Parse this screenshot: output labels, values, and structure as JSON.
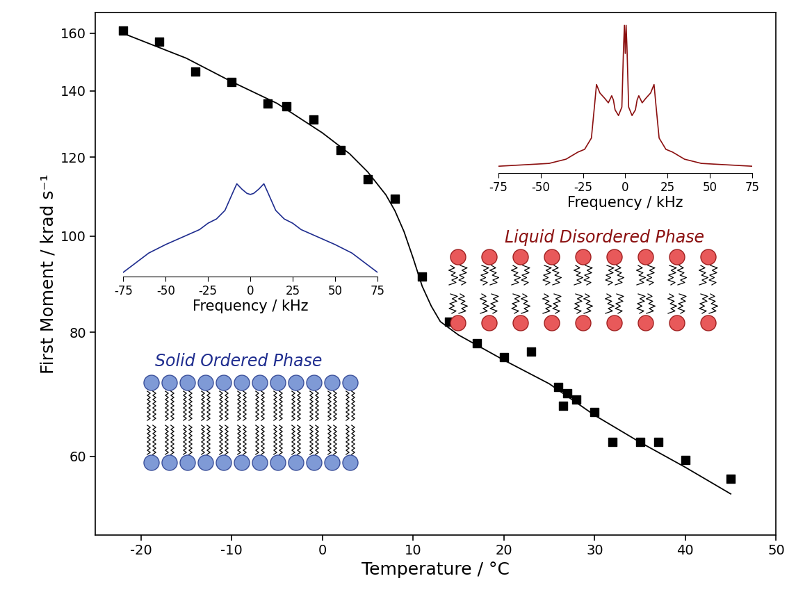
{
  "chart_data": [
    {
      "type": "scatter",
      "x_label": "Temperature / °C",
      "y_label": "First Moment / krad s⁻¹",
      "log": "y",
      "xlim": [
        -25,
        50
      ],
      "ylim": [
        50,
        168
      ],
      "xticks": [
        -20,
        -10,
        0,
        10,
        20,
        30,
        40,
        50
      ],
      "yticks": [
        60,
        80,
        100,
        120,
        140,
        160
      ],
      "series": [
        {
          "type": "scatter",
          "marker": "square",
          "color": "#000000",
          "x": [
            -22,
            -18,
            -14,
            -10,
            -6,
            -4,
            -1,
            2,
            5,
            8,
            11,
            14,
            17,
            20,
            23,
            26,
            26.5,
            27,
            28,
            30,
            32,
            35,
            37,
            40,
            45
          ],
          "values": [
            161,
            157,
            146.5,
            143,
            136,
            135,
            131,
            122,
            114,
            109,
            91,
            82,
            78,
            75.5,
            76.5,
            70.5,
            67.5,
            69.5,
            68.5,
            66.5,
            62,
            62,
            62,
            59.5,
            57
          ]
        },
        {
          "type": "line",
          "line_style": "solid",
          "color": "#000000",
          "x": [
            -22,
            -15,
            -10,
            -5,
            0,
            3,
            5,
            7,
            8,
            9,
            10,
            11,
            12,
            13,
            15,
            20,
            25,
            30,
            35,
            40,
            45
          ],
          "values": [
            160,
            151,
            143,
            136,
            127,
            121,
            116,
            110,
            106,
            101,
            95,
            89,
            85,
            82,
            79.5,
            75,
            71,
            66,
            62,
            58.5,
            55
          ]
        }
      ],
      "annotations": [
        {
          "text": "Solid Ordered Phase",
          "color": "#1f2d8f"
        },
        {
          "text": "Liquid Disordered Phase",
          "color": "#8b1010"
        }
      ]
    },
    {
      "type": "line",
      "x_label": "Frequency / kHz",
      "xlim": [
        -75,
        75
      ],
      "xticks": [
        -75,
        -50,
        -25,
        0,
        25,
        50,
        75
      ],
      "tick_labels": "x",
      "color": "#1f2d8f",
      "x": [
        -75,
        -70,
        -60,
        -50,
        -40,
        -30,
        -25,
        -20,
        -15,
        -10,
        -8,
        -5,
        -2,
        0,
        2,
        5,
        8,
        10,
        15,
        20,
        25,
        30,
        40,
        50,
        60,
        70,
        75
      ],
      "values": [
        0.02,
        0.08,
        0.2,
        0.28,
        0.35,
        0.42,
        0.48,
        0.52,
        0.6,
        0.78,
        0.85,
        0.8,
        0.76,
        0.75,
        0.76,
        0.8,
        0.85,
        0.78,
        0.6,
        0.52,
        0.48,
        0.42,
        0.35,
        0.28,
        0.2,
        0.08,
        0.02
      ]
    },
    {
      "type": "line",
      "x_label": "Frequency / kHz",
      "xlim": [
        -75,
        75
      ],
      "xticks": [
        -75,
        -50,
        -25,
        0,
        25,
        50,
        75
      ],
      "tick_labels": "x",
      "color": "#8b1010",
      "x": [
        -75,
        -60,
        -45,
        -35,
        -28,
        -24,
        -20,
        -18,
        -17,
        -16,
        -15,
        -12,
        -10,
        -8,
        -7,
        -6,
        -4,
        -2,
        -1,
        -0.5,
        0,
        0.5,
        1,
        2,
        4,
        6,
        7,
        8,
        10,
        12,
        15,
        16,
        17,
        18,
        20,
        24,
        28,
        35,
        45,
        60,
        75
      ],
      "values": [
        0.0,
        0.01,
        0.02,
        0.05,
        0.1,
        0.12,
        0.2,
        0.45,
        0.58,
        0.55,
        0.52,
        0.48,
        0.45,
        0.5,
        0.47,
        0.4,
        0.36,
        0.42,
        0.85,
        1.0,
        0.8,
        1.0,
        0.85,
        0.42,
        0.36,
        0.4,
        0.47,
        0.5,
        0.45,
        0.48,
        0.52,
        0.55,
        0.58,
        0.45,
        0.2,
        0.12,
        0.1,
        0.05,
        0.02,
        0.01,
        0.0
      ]
    }
  ]
}
